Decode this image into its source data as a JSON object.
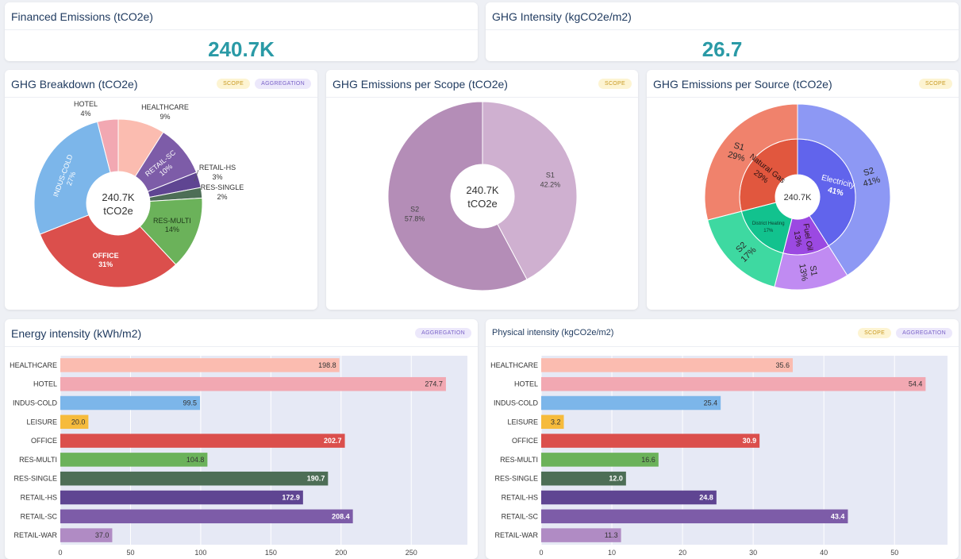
{
  "kpis": {
    "financed": {
      "title": "Financed Emissions (tCO2e)",
      "value": "240.7K"
    },
    "intensity": {
      "title": "GHG Intensity (kgCO2e/m2)",
      "value": "26.7"
    }
  },
  "tags": {
    "scope": "SCOPE",
    "aggregation": "AGGREGATION"
  },
  "cards": {
    "breakdown": {
      "title": "GHG Breakdown (tCO2e)"
    },
    "scope": {
      "title": "GHG Emissions per Scope (tCO2e)"
    },
    "source": {
      "title": "GHG Emissions per Source (tCO2e)"
    },
    "energy": {
      "title": "Energy intensity (kWh/m2)"
    },
    "physical": {
      "title": "Physical intensity (kgCO2e/m2)"
    }
  },
  "colors": {
    "HEALTHCARE": "#fbbcb0",
    "HOTEL": "#f2a8b2",
    "INDUS-COLD": "#7cb6ea",
    "LEISURE": "#f6bb3c",
    "OFFICE": "#db4f4c",
    "RES-MULTI": "#6bb25a",
    "RES-SINGLE": "#4d6e56",
    "RETAIL-HS": "#5f4592",
    "RETAIL-SC": "#7d5ca8",
    "RETAIL-WAR": "#b08bc4"
  },
  "chart_data": [
    {
      "type": "pie",
      "id": "breakdown",
      "title": "GHG Breakdown (tCO2e)",
      "center_label": [
        "240.7K",
        "tCO2e"
      ],
      "categories": [
        "HEALTHCARE",
        "RETAIL-SC",
        "RETAIL-HS",
        "RES-SINGLE",
        "RES-MULTI",
        "OFFICE",
        "INDUS-COLD",
        "HOTEL"
      ],
      "values": [
        9,
        10,
        3,
        2,
        14,
        31,
        27,
        4
      ],
      "labels": [
        "9%",
        "10%",
        "3%",
        "2%",
        "14%",
        "31%",
        "27%",
        "4%"
      ]
    },
    {
      "type": "pie",
      "id": "scope",
      "title": "GHG Emissions per Scope (tCO2e)",
      "center_label": [
        "240.7K",
        "tCO2e"
      ],
      "categories": [
        "S1",
        "S2"
      ],
      "values": [
        42.2,
        57.8
      ],
      "labels": [
        "42.2%",
        "57.8%"
      ],
      "colors": [
        "#cfb0d0",
        "#b48db7"
      ]
    },
    {
      "type": "pie",
      "id": "source",
      "title": "GHG Emissions per Source (tCO2e)",
      "center_label": "240.7K",
      "inner": {
        "categories": [
          "Electricity",
          "Fuel Oil",
          "District Heating",
          "Natural Gas"
        ],
        "values": [
          41,
          13,
          17,
          29
        ],
        "labels": [
          "41%",
          "13%",
          "17%",
          "29%"
        ],
        "colors": [
          "#6164ec",
          "#9b49e2",
          "#12c28e",
          "#e1573e"
        ]
      },
      "outer": {
        "categories": [
          "S2",
          "S1",
          "S2",
          "S1"
        ],
        "values": [
          41,
          13,
          17,
          29
        ],
        "labels": [
          "41%",
          "13%",
          "17%",
          "29%"
        ],
        "colors": [
          "#8d98f4",
          "#c08bf2",
          "#3ed9a1",
          "#f0826c"
        ]
      }
    },
    {
      "type": "bar",
      "id": "energy",
      "title": "Energy intensity (kWh/m2)",
      "categories": [
        "HEALTHCARE",
        "HOTEL",
        "INDUS-COLD",
        "LEISURE",
        "OFFICE",
        "RES-MULTI",
        "RES-SINGLE",
        "RETAIL-HS",
        "RETAIL-SC",
        "RETAIL-WAR"
      ],
      "values": [
        198.8,
        274.7,
        99.5,
        20.0,
        202.7,
        104.8,
        190.7,
        172.9,
        208.4,
        37.0
      ],
      "labels": [
        "198.8",
        "274.7",
        "99.5",
        "20.0",
        "202.7",
        "104.8",
        "190.7",
        "172.9",
        "208.4",
        "37.0"
      ],
      "xlim": [
        0,
        290
      ],
      "ticks": [
        "0",
        "50",
        "100",
        "150",
        "200",
        "250"
      ],
      "tick_values": [
        0,
        50,
        100,
        150,
        200,
        250
      ]
    },
    {
      "type": "bar",
      "id": "physical",
      "title": "Physical intensity (kgCO2e/m2)",
      "categories": [
        "HEALTHCARE",
        "HOTEL",
        "INDUS-COLD",
        "LEISURE",
        "OFFICE",
        "RES-MULTI",
        "RES-SINGLE",
        "RETAIL-HS",
        "RETAIL-SC",
        "RETAIL-WAR"
      ],
      "values": [
        35.6,
        54.4,
        25.4,
        3.2,
        30.9,
        16.6,
        12.0,
        24.8,
        43.4,
        11.3
      ],
      "labels": [
        "35.6",
        "54.4",
        "25.4",
        "3.2",
        "30.9",
        "16.6",
        "12.0",
        "24.8",
        "43.4",
        "11.3"
      ],
      "xlim": [
        0,
        57.5
      ],
      "ticks": [
        "0",
        "10",
        "20",
        "30",
        "40",
        "50"
      ],
      "tick_values": [
        0,
        10,
        20,
        30,
        40,
        50
      ]
    }
  ]
}
